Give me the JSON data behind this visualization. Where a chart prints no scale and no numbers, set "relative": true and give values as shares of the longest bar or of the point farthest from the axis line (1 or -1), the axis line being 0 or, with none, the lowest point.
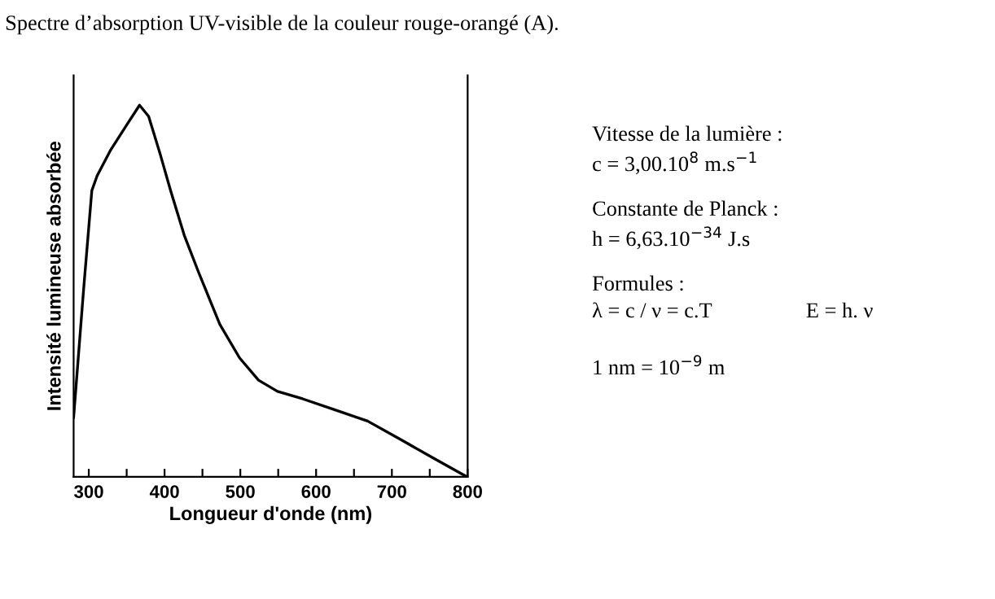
{
  "chart_data": {
    "type": "line",
    "title": "Spectre d’absorption UV-visible de la couleur rouge-orangé (A).",
    "xlabel": "Longueur d'onde (nm)",
    "ylabel": "Intensité lumineuse absorbée",
    "relative": true,
    "tick_labels": "x",
    "grid": false,
    "marker": "none",
    "line_style": "solid",
    "xlim": [
      280,
      800
    ],
    "xticks": [
      300,
      {
        "value": 350,
        "label": null
      },
      400,
      {
        "value": 450,
        "label": null
      },
      500,
      {
        "value": 550,
        "label": null
      },
      600,
      {
        "value": 650,
        "label": null
      },
      700,
      {
        "value": 750,
        "label": null
      },
      800
    ],
    "series": [
      {
        "color": "#000000",
        "x": [
          280,
          293,
          304,
          311,
          329,
          351,
          367,
          379,
          394,
          408,
          426,
          445,
          473,
          499,
          524,
          549,
          582,
          625,
          668,
          712,
          755,
          799
        ],
        "values": [
          0.16,
          0.5,
          0.77,
          0.81,
          0.88,
          0.95,
          1.0,
          0.97,
          0.87,
          0.77,
          0.65,
          0.55,
          0.41,
          0.32,
          0.26,
          0.23,
          0.21,
          0.18,
          0.15,
          0.1,
          0.05,
          0.0
        ]
      }
    ],
    "annotations": [
      "Vitesse de la lumière :",
      "c = 3,00.10$^{8}$ m.s$^{−1}$",
      "Constante de Planck :",
      "h = 6,63.10$^{−34}$ J.s",
      "Formules :",
      "λ = c / ν = c.T",
      "E = h. ν",
      "1 nm = 10$^{−9}$ m"
    ]
  }
}
